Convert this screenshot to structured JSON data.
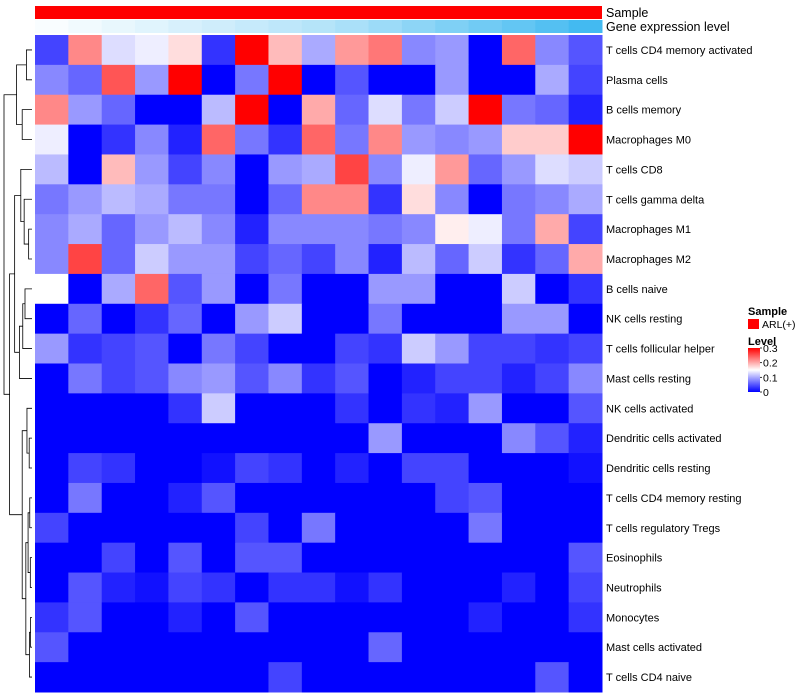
{
  "chart_data": {
    "type": "heatmap",
    "title": "",
    "columns": 17,
    "annotations": [
      {
        "name": "Sample",
        "kind": "categorical",
        "color": "#ff0000"
      },
      {
        "name": "Gene expression level",
        "kind": "gradient",
        "values": [
          0.02,
          0.05,
          0.08,
          0.11,
          0.14,
          0.17,
          0.2,
          0.23,
          0.26,
          0.3,
          0.35,
          0.4,
          0.45,
          0.5,
          0.55,
          0.6,
          0.66
        ]
      }
    ],
    "rows": [
      "T cells CD4 memory activated",
      "Plasma cells",
      "B cells memory",
      "Macrophages M0",
      "T cells CD8",
      "T cells gamma delta",
      "Macrophages M1",
      "Macrophages M2",
      "B cells naive",
      "NK cells resting",
      "T cells follicular helper",
      "Mast cells resting",
      "NK cells activated",
      "Dendritic cells activated",
      "Dendritic cells resting",
      "T cells CD4 memory resting",
      "T cells regulatory  Tregs",
      "Eosinophils",
      "Neutrophils",
      "Monocytes",
      "Mast cells activated",
      "T cells CD4 naive"
    ],
    "values": [
      [
        0.04,
        0.22,
        0.13,
        0.14,
        0.17,
        0.03,
        0.3,
        0.19,
        0.1,
        0.21,
        0.23,
        0.08,
        0.09,
        0.0,
        0.24,
        0.08,
        0.05
      ],
      [
        0.08,
        0.06,
        0.25,
        0.09,
        0.3,
        0.0,
        0.07,
        0.3,
        0.0,
        0.05,
        0.0,
        0.0,
        0.09,
        0.0,
        0.0,
        0.1,
        0.04
      ],
      [
        0.22,
        0.09,
        0.06,
        0.0,
        0.0,
        0.11,
        0.3,
        0.0,
        0.2,
        0.06,
        0.13,
        0.07,
        0.12,
        0.3,
        0.07,
        0.06,
        0.02
      ],
      [
        0.14,
        0.0,
        0.03,
        0.08,
        0.02,
        0.24,
        0.07,
        0.03,
        0.24,
        0.07,
        0.22,
        0.09,
        0.08,
        0.09,
        0.18,
        0.18,
        0.3
      ],
      [
        0.11,
        0.0,
        0.19,
        0.09,
        0.04,
        0.08,
        0.0,
        0.09,
        0.1,
        0.26,
        0.08,
        0.14,
        0.21,
        0.06,
        0.09,
        0.13,
        0.12
      ],
      [
        0.07,
        0.09,
        0.11,
        0.1,
        0.07,
        0.07,
        0.0,
        0.06,
        0.22,
        0.22,
        0.03,
        0.17,
        0.08,
        0.0,
        0.07,
        0.08,
        0.1
      ],
      [
        0.08,
        0.1,
        0.06,
        0.09,
        0.11,
        0.08,
        0.02,
        0.08,
        0.08,
        0.08,
        0.07,
        0.08,
        0.16,
        0.14,
        0.07,
        0.2,
        0.04
      ],
      [
        0.08,
        0.26,
        0.06,
        0.12,
        0.09,
        0.09,
        0.04,
        0.06,
        0.04,
        0.08,
        0.02,
        0.11,
        0.06,
        0.12,
        0.03,
        0.06,
        0.2
      ],
      [
        0.15,
        0.0,
        0.1,
        0.24,
        0.05,
        0.09,
        0.0,
        0.07,
        0.0,
        0.0,
        0.09,
        0.09,
        0.0,
        0.0,
        0.12,
        0.0,
        0.03
      ],
      [
        0.0,
        0.06,
        0.0,
        0.03,
        0.06,
        0.0,
        0.09,
        0.12,
        0.0,
        0.0,
        0.07,
        0.0,
        0.0,
        0.0,
        0.09,
        0.09,
        0.0
      ],
      [
        0.09,
        0.03,
        0.04,
        0.05,
        0.0,
        0.07,
        0.04,
        0.0,
        0.0,
        0.04,
        0.03,
        0.12,
        0.09,
        0.04,
        0.04,
        0.03,
        0.04
      ],
      [
        0.0,
        0.07,
        0.04,
        0.05,
        0.08,
        0.09,
        0.05,
        0.08,
        0.03,
        0.05,
        0.0,
        0.02,
        0.04,
        0.04,
        0.02,
        0.04,
        0.08
      ],
      [
        0.0,
        0.0,
        0.0,
        0.0,
        0.03,
        0.12,
        0.0,
        0.0,
        0.0,
        0.03,
        0.0,
        0.03,
        0.02,
        0.09,
        0.0,
        0.0,
        0.05
      ],
      [
        0.0,
        0.0,
        0.0,
        0.0,
        0.0,
        0.0,
        0.0,
        0.0,
        0.0,
        0.0,
        0.09,
        0.0,
        0.0,
        0.0,
        0.08,
        0.05,
        0.02
      ],
      [
        0.0,
        0.04,
        0.03,
        0.0,
        0.0,
        0.01,
        0.04,
        0.03,
        0.0,
        0.02,
        0.0,
        0.04,
        0.04,
        0.0,
        0.0,
        0.0,
        0.01
      ],
      [
        0.0,
        0.07,
        0.0,
        0.0,
        0.02,
        0.05,
        0.0,
        0.0,
        0.0,
        0.0,
        0.0,
        0.0,
        0.04,
        0.05,
        0.0,
        0.0,
        0.0
      ],
      [
        0.04,
        0.0,
        0.0,
        0.0,
        0.0,
        0.0,
        0.04,
        0.0,
        0.07,
        0.0,
        0.0,
        0.0,
        0.0,
        0.07,
        0.0,
        0.0,
        0.0
      ],
      [
        0.0,
        0.0,
        0.04,
        0.0,
        0.05,
        0.0,
        0.05,
        0.05,
        0.0,
        0.0,
        0.0,
        0.0,
        0.0,
        0.0,
        0.0,
        0.0,
        0.05
      ],
      [
        0.0,
        0.05,
        0.02,
        0.01,
        0.04,
        0.03,
        0.0,
        0.03,
        0.03,
        0.01,
        0.03,
        0.0,
        0.0,
        0.0,
        0.02,
        0.0,
        0.04
      ],
      [
        0.03,
        0.05,
        0.0,
        0.0,
        0.02,
        0.0,
        0.05,
        0.0,
        0.0,
        0.0,
        0.0,
        0.0,
        0.0,
        0.02,
        0.0,
        0.0,
        0.03
      ],
      [
        0.05,
        0.0,
        0.0,
        0.0,
        0.0,
        0.0,
        0.0,
        0.0,
        0.0,
        0.0,
        0.06,
        0.0,
        0.0,
        0.0,
        0.0,
        0.0,
        0.0
      ],
      [
        0.0,
        0.0,
        0.0,
        0.0,
        0.0,
        0.0,
        0.0,
        0.04,
        0.0,
        0.0,
        0.0,
        0.0,
        0.0,
        0.0,
        0.0,
        0.05,
        0.0
      ]
    ],
    "color_scale": {
      "min": 0,
      "mid": 0.15,
      "max": 0.3,
      "low": "#0000ff",
      "midColor": "#ffffff",
      "high": "#ff0000"
    },
    "legend": {
      "position": "right",
      "sample_title": "Sample",
      "sample_entry": "ARL(+)",
      "level_title": "Level",
      "ticks": [
        "0.3",
        "0.2",
        "0.1",
        "0"
      ],
      "tick_values": [
        0.3,
        0.2,
        0.1,
        0
      ]
    },
    "row_dendrogram": true
  }
}
